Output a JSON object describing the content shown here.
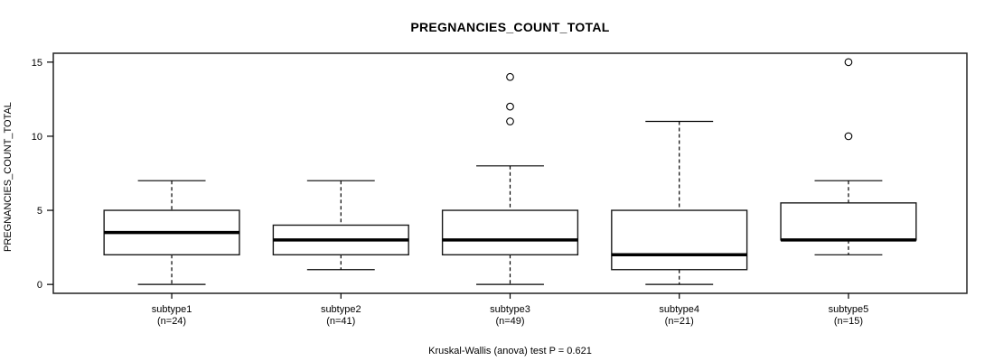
{
  "title": "PREGNANCIES_COUNT_TOTAL",
  "y_axis": {
    "label": "PREGNANCIES_COUNT_TOTAL",
    "ticks": [
      0,
      5,
      10,
      15
    ],
    "lim": [
      0,
      15
    ]
  },
  "footnote": "Kruskal-Wallis (anova) test P = 0.621",
  "chart_data": {
    "type": "boxplot",
    "title": "PREGNANCIES_COUNT_TOTAL",
    "xlabel": "",
    "ylabel": "PREGNANCIES_COUNT_TOTAL",
    "ylim": [
      0,
      15
    ],
    "yticks": [
      0,
      5,
      10,
      15
    ],
    "grid": false,
    "legend": "none",
    "footnote": "Kruskal-Wallis (anova) test P = 0.621",
    "colors": {
      "line": "#000000",
      "box_fill": "#ffffff",
      "background": "#ffffff"
    },
    "groups": [
      {
        "label": "subtype1",
        "n_label": "(n=24)",
        "n": 24,
        "whisker_low": 0,
        "q1": 2,
        "median": 3.5,
        "q3": 5,
        "whisker_high": 7,
        "outliers": []
      },
      {
        "label": "subtype2",
        "n_label": "(n=41)",
        "n": 41,
        "whisker_low": 1,
        "q1": 2,
        "median": 3,
        "q3": 4,
        "whisker_high": 7,
        "outliers": []
      },
      {
        "label": "subtype3",
        "n_label": "(n=49)",
        "n": 49,
        "whisker_low": 0,
        "q1": 2,
        "median": 3,
        "q3": 5,
        "whisker_high": 8,
        "outliers": [
          11,
          12,
          14
        ]
      },
      {
        "label": "subtype4",
        "n_label": "(n=21)",
        "n": 21,
        "whisker_low": 0,
        "q1": 1,
        "median": 2,
        "q3": 5,
        "whisker_high": 11,
        "outliers": []
      },
      {
        "label": "subtype5",
        "n_label": "(n=15)",
        "n": 15,
        "whisker_low": 2,
        "q1": 3,
        "median": 3,
        "q3": 5.5,
        "whisker_high": 7,
        "outliers": [
          10,
          15
        ]
      }
    ]
  }
}
